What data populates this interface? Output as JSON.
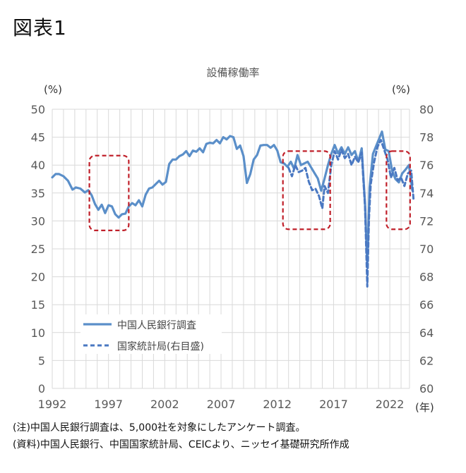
{
  "figure_label": "図表1",
  "chart_data": {
    "type": "line",
    "title": "設備稼働率",
    "xlabel": "(年)",
    "ylabel_left": "(%)",
    "ylabel_right": "(%)",
    "ylim_left": [
      0,
      50
    ],
    "ylim_right": [
      60,
      80
    ],
    "y_ticks_left": [
      "0",
      "5",
      "10",
      "15",
      "20",
      "25",
      "30",
      "35",
      "40",
      "45",
      "50"
    ],
    "y_ticks_right": [
      "60",
      "62",
      "64",
      "66",
      "68",
      "70",
      "72",
      "74",
      "76",
      "78",
      "80"
    ],
    "x_ticks": [
      "1992",
      "1997",
      "2002",
      "2007",
      "2012",
      "2017",
      "2022"
    ],
    "grid": true,
    "legend_position": "lower-left",
    "series": [
      {
        "name": "中国人民銀行調査",
        "axis": "left",
        "style": "solid",
        "color": "#5b8fc9",
        "x": [
          1992.0,
          1992.3,
          1992.6,
          1993.0,
          1993.4,
          1993.8,
          1994.1,
          1994.5,
          1994.9,
          1995.2,
          1995.5,
          1995.8,
          1996.1,
          1996.4,
          1996.7,
          1997.0,
          1997.3,
          1997.6,
          1997.9,
          1998.2,
          1998.5,
          1998.8,
          1999.1,
          1999.4,
          1999.7,
          2000.0,
          2000.3,
          2000.6,
          2000.9,
          2001.2,
          2001.5,
          2001.8,
          2002.1,
          2002.4,
          2002.7,
          2003.0,
          2003.3,
          2003.6,
          2003.9,
          2004.2,
          2004.5,
          2004.8,
          2005.1,
          2005.4,
          2005.7,
          2006.0,
          2006.3,
          2006.6,
          2006.9,
          2007.2,
          2007.5,
          2007.8,
          2008.1,
          2008.4,
          2008.7,
          2009.0,
          2009.3,
          2009.6,
          2009.9,
          2010.2,
          2010.5,
          2010.8,
          2011.1,
          2011.4,
          2011.7,
          2012.0,
          2012.3,
          2012.6,
          2012.9,
          2013.2,
          2013.5,
          2013.8,
          2014.1,
          2014.4,
          2014.7,
          2015.0,
          2015.3,
          2015.6,
          2015.9,
          2016.2,
          2016.5,
          2016.8,
          2017.1,
          2017.4,
          2017.7,
          2018.0,
          2018.3,
          2018.6,
          2018.9,
          2019.2,
          2019.5,
          2019.8,
          2020.0,
          2020.2,
          2020.5,
          2020.8,
          2021.0,
          2021.3,
          2021.6,
          2021.9,
          2022.2,
          2022.5,
          2022.8,
          2023.1,
          2023.4,
          2023.7,
          2024.0
        ],
        "values": [
          37.8,
          38.4,
          38.4,
          38.0,
          37.2,
          35.6,
          36.0,
          35.8,
          35.1,
          35.5,
          34.6,
          33.0,
          32.0,
          32.9,
          31.4,
          32.8,
          32.6,
          31.2,
          30.6,
          31.2,
          31.3,
          32.6,
          33.2,
          32.8,
          33.7,
          32.6,
          34.7,
          35.8,
          36.0,
          36.6,
          37.2,
          36.5,
          37.0,
          40.2,
          41.0,
          41.0,
          41.6,
          41.9,
          42.5,
          41.6,
          42.6,
          42.4,
          43.0,
          42.3,
          43.8,
          44.0,
          43.9,
          44.5,
          43.9,
          45.0,
          44.6,
          45.2,
          45.0,
          42.9,
          43.5,
          41.6,
          36.8,
          38.4,
          41.0,
          41.8,
          43.5,
          43.6,
          43.6,
          43.1,
          43.6,
          42.6,
          40.5,
          40.3,
          39.7,
          40.6,
          39.3,
          41.8,
          40.0,
          40.3,
          40.6,
          39.6,
          38.6,
          37.6,
          35.4,
          37.6,
          40.0,
          42.0,
          43.6,
          42.1,
          43.2,
          42.0,
          43.2,
          41.8,
          42.5,
          40.6,
          43.0,
          33.0,
          22.0,
          36.0,
          42.0,
          43.5,
          44.5,
          46.0,
          42.8,
          42.5,
          39.0,
          37.5,
          36.9,
          38.5,
          39.2,
          40.0,
          35.5
        ]
      },
      {
        "name": "国家統計局(右目盛)",
        "axis": "right",
        "style": "dashed",
        "color": "#4a78c2",
        "x": [
          2013.0,
          2013.3,
          2013.6,
          2013.9,
          2014.2,
          2014.5,
          2014.8,
          2015.1,
          2015.4,
          2015.7,
          2016.0,
          2016.2,
          2016.5,
          2016.8,
          2017.1,
          2017.4,
          2017.7,
          2018.0,
          2018.3,
          2018.6,
          2018.9,
          2019.2,
          2019.5,
          2019.8,
          2020.0,
          2020.15,
          2020.3,
          2020.6,
          2020.9,
          2021.2,
          2021.5,
          2021.8,
          2022.1,
          2022.4,
          2022.7,
          2023.0,
          2023.3,
          2023.6,
          2023.9,
          2024.1
        ],
        "values": [
          75.8,
          75.2,
          76.0,
          75.5,
          75.6,
          75.8,
          74.8,
          74.2,
          74.3,
          73.8,
          72.9,
          74.5,
          74.0,
          76.0,
          77.0,
          76.4,
          77.1,
          76.5,
          76.8,
          76.0,
          76.6,
          76.2,
          76.9,
          73.0,
          67.3,
          72.2,
          74.6,
          76.2,
          77.3,
          77.8,
          77.1,
          76.4,
          75.1,
          75.8,
          74.9,
          75.1,
          74.5,
          75.4,
          75.6,
          73.6
        ]
      }
    ],
    "highlight_boxes": [
      {
        "x_from": 1995.3,
        "x_to": 1998.8,
        "y_from_left": 28.3,
        "y_to_left": 41.7
      },
      {
        "x_from": 2012.5,
        "x_to": 2016.7,
        "y_from_left": 28.5,
        "y_to_left": 42.5
      },
      {
        "x_from": 2021.7,
        "x_to": 2023.8,
        "y_from_left": 28.5,
        "y_to_left": 42.5
      }
    ]
  },
  "notes": {
    "note1": "(注)中国人民銀行調査は、5,000社を対象にしたアンケート調査。",
    "note2": "(資料)中国人民銀行、中国国家統計局、CEICより、ニッセイ基礎研究所作成"
  },
  "colors": {
    "grid": "#d9d9d9",
    "highlight": "#c0202a",
    "axis_text": "#595959"
  }
}
